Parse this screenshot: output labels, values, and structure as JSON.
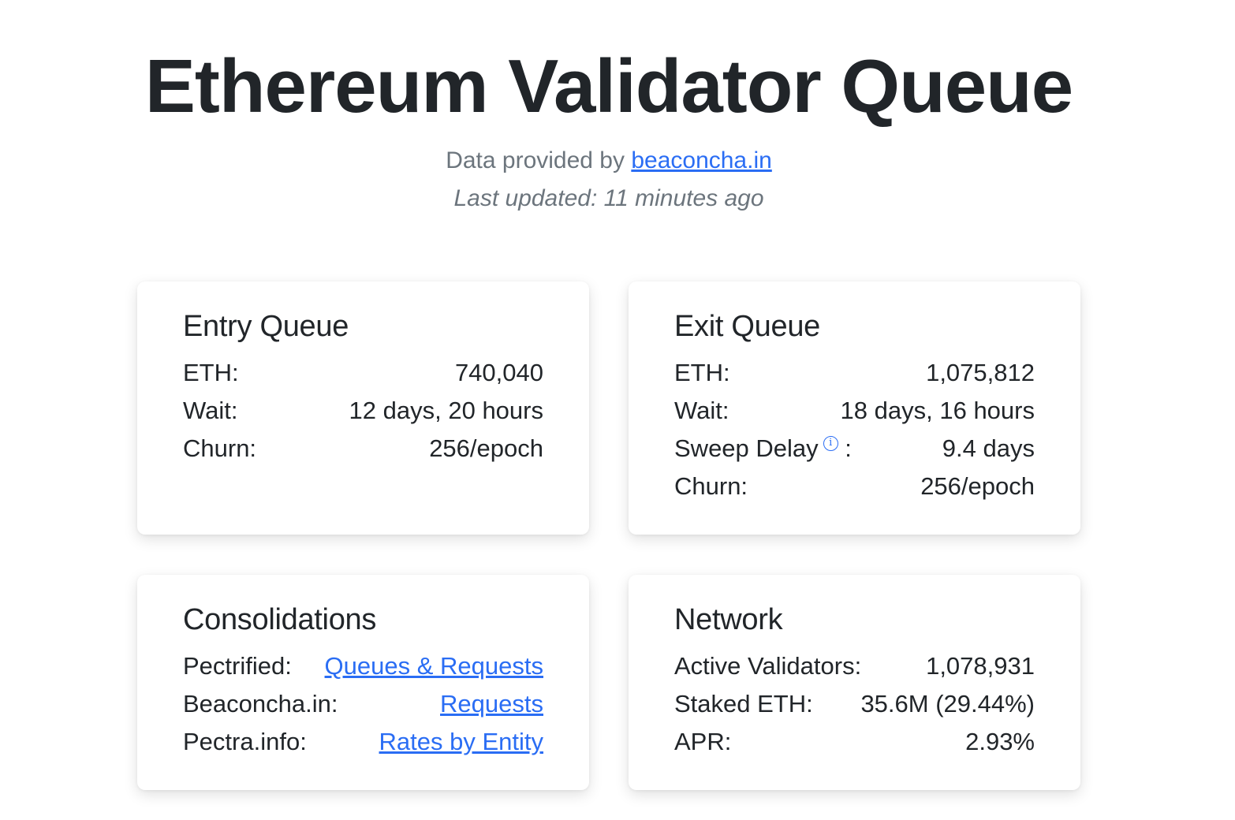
{
  "header": {
    "title": "Ethereum Validator Queue",
    "provided_prefix": "Data provided by ",
    "provider_link": "beaconcha.in",
    "last_updated": "Last updated: 11 minutes ago"
  },
  "entry_queue": {
    "title": "Entry Queue",
    "rows": [
      {
        "label": "ETH:",
        "value": "740,040"
      },
      {
        "label": "Wait:",
        "value": "12 days, 20 hours"
      },
      {
        "label": "Churn:",
        "value": "256/epoch"
      }
    ]
  },
  "exit_queue": {
    "title": "Exit Queue",
    "rows": [
      {
        "label": "ETH:",
        "value": "1,075,812"
      },
      {
        "label": "Wait:",
        "value": "18 days, 16 hours"
      },
      {
        "label": "Sweep Delay",
        "suffix": ":",
        "icon": "info-icon",
        "value": "9.4 days"
      },
      {
        "label": "Churn:",
        "value": "256/epoch"
      }
    ]
  },
  "consolidations": {
    "title": "Consolidations",
    "rows": [
      {
        "label": "Pectrified:",
        "link": "Queues & Requests"
      },
      {
        "label": "Beaconcha.in:",
        "link": "Requests"
      },
      {
        "label": "Pectra.info:",
        "link": "Rates by Entity"
      }
    ]
  },
  "network": {
    "title": "Network",
    "rows": [
      {
        "label": "Active Validators:",
        "value": "1,078,931"
      },
      {
        "label": "Staked ETH:",
        "value": "35.6M (29.44%)"
      },
      {
        "label": "APR:",
        "value": "2.93%"
      }
    ]
  },
  "colors": {
    "link": "#2a6df4",
    "text": "#212529",
    "muted": "#6c757d"
  }
}
